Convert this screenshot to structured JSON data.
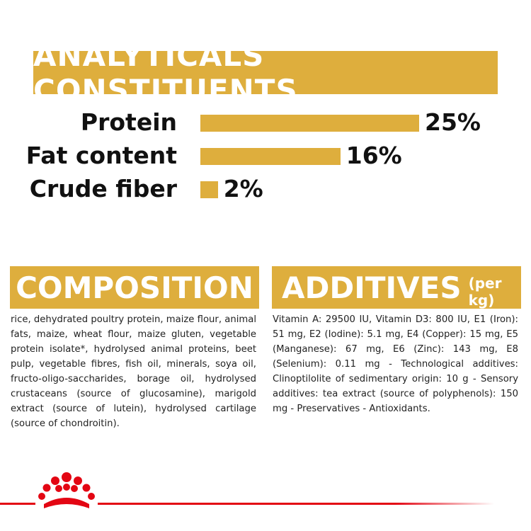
{
  "analyticals": {
    "title": "ANALYTICALS CONSTITUENTS",
    "items": [
      {
        "label": "Protein",
        "value": 25,
        "value_label": "25%"
      },
      {
        "label": "Fat content",
        "value": 16,
        "value_label": "16%"
      },
      {
        "label": "Crude fiber",
        "value": 2,
        "value_label": "2%"
      }
    ]
  },
  "composition": {
    "title": "COMPOSITION",
    "text": "rice, dehydrated poultry protein, maize flour, animal fats, maize, wheat flour, maize gluten, vegetable protein isolate*, hydrolysed animal proteins, beet pulp, vegetable fibres, fish oil, minerals, soya oil, fructo-oligo-saccharides, borage oil, hydrolysed crustaceans (source of glucosamine), marigold extract (source of lutein), hydrolysed cartilage (source of chondroitin)."
  },
  "additives": {
    "title": "ADDITIVES",
    "title_note": "(per kg)",
    "text": "Vitamin A: 29500 IU, Vitamin D3: 800 IU, E1 (Iron): 51 mg, E2 (Iodine): 5.1 mg, E4 (Copper): 15 mg, E5 (Manganese): 67 mg, E6 (Zinc): 143 mg, E8 (Selenium): 0.11 mg - Technological additives: Clinoptilolite of sedimentary origin: 10 g - Sensory additives: tea extract (source of polyphenols): 150 mg - Preservatives - Antioxidants."
  }
}
